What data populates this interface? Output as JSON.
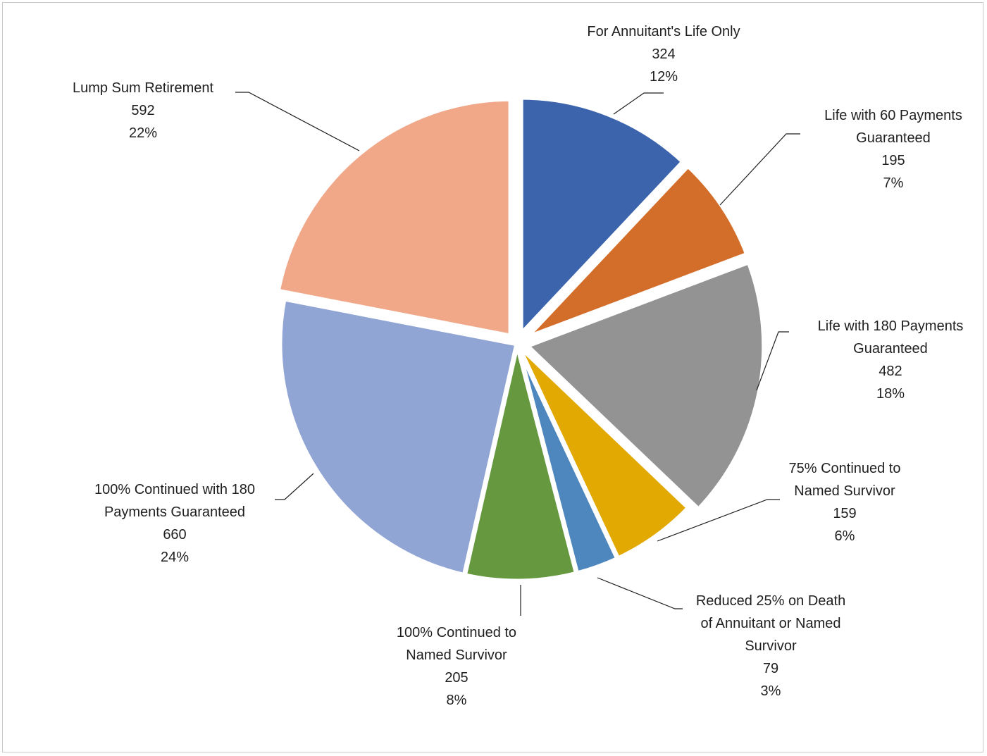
{
  "chart_data": {
    "type": "pie",
    "title": "",
    "legend": "none",
    "slices": [
      {
        "label": "For Annuitant's Life Only",
        "lines": [
          "For Annuitant's Life Only"
        ],
        "value": 324,
        "percent": "12%",
        "color": "#3c64ad",
        "exploded": true
      },
      {
        "label": "Life with 60 Payments Guaranteed",
        "lines": [
          "Life with 60 Payments",
          "Guaranteed"
        ],
        "value": 195,
        "percent": "7%",
        "color": "#d36e2a",
        "exploded": true
      },
      {
        "label": "Life with 180 Payments Guaranteed",
        "lines": [
          "Life with 180 Payments",
          "Guaranteed"
        ],
        "value": 482,
        "percent": "18%",
        "color": "#939393",
        "exploded": true
      },
      {
        "label": "75% Continued to Named Survivor",
        "lines": [
          "75% Continued to",
          "Named Survivor"
        ],
        "value": 159,
        "percent": "6%",
        "color": "#e2a903",
        "exploded": false
      },
      {
        "label": "Reduced 25% on Death of Annuitant or Named Survivor",
        "lines": [
          "Reduced 25% on Death",
          "of Annuitant or Named",
          "Survivor"
        ],
        "value": 79,
        "percent": "3%",
        "color": "#4e87be",
        "exploded": false
      },
      {
        "label": "100% Continued to Named Survivor",
        "lines": [
          "100% Continued to",
          "Named Survivor"
        ],
        "value": 205,
        "percent": "8%",
        "color": "#66993f",
        "exploded": false
      },
      {
        "label": "100% Continued with 180 Payments Guaranteed",
        "lines": [
          "100% Continued with 180",
          "Payments Guaranteed"
        ],
        "value": 660,
        "percent": "24%",
        "color": "#91a5d5",
        "exploded": false
      },
      {
        "label": "Lump Sum Retirement",
        "lines": [
          "Lump Sum Retirement"
        ],
        "value": 592,
        "percent": "22%",
        "color": "#f0a889",
        "exploded": true
      }
    ]
  }
}
